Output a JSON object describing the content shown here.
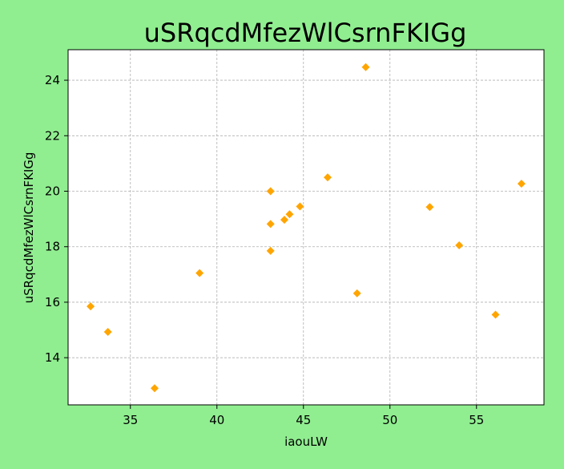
{
  "chart_data": {
    "type": "scatter",
    "title": "uSRqcdMfezWlCsrnFKIGg",
    "xlabel": "iaouLW",
    "ylabel": "uSRqcdMfezWlCsrnFKIGg",
    "xlim": [
      31.4,
      58.9
    ],
    "ylim": [
      12.3,
      25.1
    ],
    "xticks": [
      35,
      40,
      45,
      50,
      55
    ],
    "yticks": [
      14,
      16,
      18,
      20,
      22,
      24
    ],
    "grid": true,
    "marker": "diamond",
    "color": "#ffa500",
    "background": "#90ee90",
    "points": [
      {
        "x": 32.7,
        "y": 15.85
      },
      {
        "x": 33.7,
        "y": 14.93
      },
      {
        "x": 36.4,
        "y": 12.9
      },
      {
        "x": 39.0,
        "y": 17.05
      },
      {
        "x": 43.1,
        "y": 20.0
      },
      {
        "x": 43.1,
        "y": 18.82
      },
      {
        "x": 43.1,
        "y": 17.85
      },
      {
        "x": 43.9,
        "y": 18.97
      },
      {
        "x": 44.2,
        "y": 19.17
      },
      {
        "x": 44.8,
        "y": 19.45
      },
      {
        "x": 46.4,
        "y": 20.5
      },
      {
        "x": 48.1,
        "y": 16.32
      },
      {
        "x": 48.6,
        "y": 24.47
      },
      {
        "x": 52.3,
        "y": 19.43
      },
      {
        "x": 54.0,
        "y": 18.05
      },
      {
        "x": 56.1,
        "y": 15.55
      },
      {
        "x": 57.6,
        "y": 20.27
      }
    ]
  }
}
